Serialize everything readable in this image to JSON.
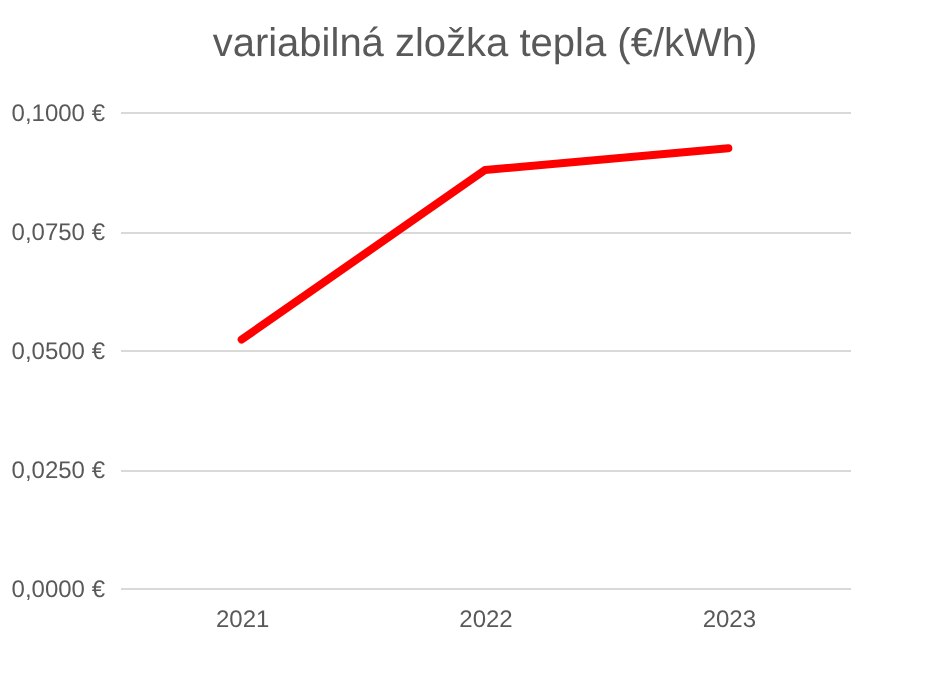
{
  "chart_data": {
    "type": "line",
    "title": "variabilná zložka tepla  (€/kWh)",
    "categories": [
      "2021",
      "2022",
      "2023"
    ],
    "series": [
      {
        "color": "#ff0000",
        "values": [
          0.0522,
          0.0878,
          0.0924
        ]
      }
    ],
    "ylim": [
      0,
      0.1
    ],
    "yticks": [
      {
        "value": 0,
        "label": "0,0000 €"
      },
      {
        "value": 0.025,
        "label": "0,0250 €"
      },
      {
        "value": 0.05,
        "label": "0,0500 €"
      },
      {
        "value": 0.075,
        "label": "0,0750 €"
      },
      {
        "value": 0.1,
        "label": "0,1000 €"
      }
    ],
    "grid": "y",
    "marker": "none",
    "line_style": "solid"
  }
}
